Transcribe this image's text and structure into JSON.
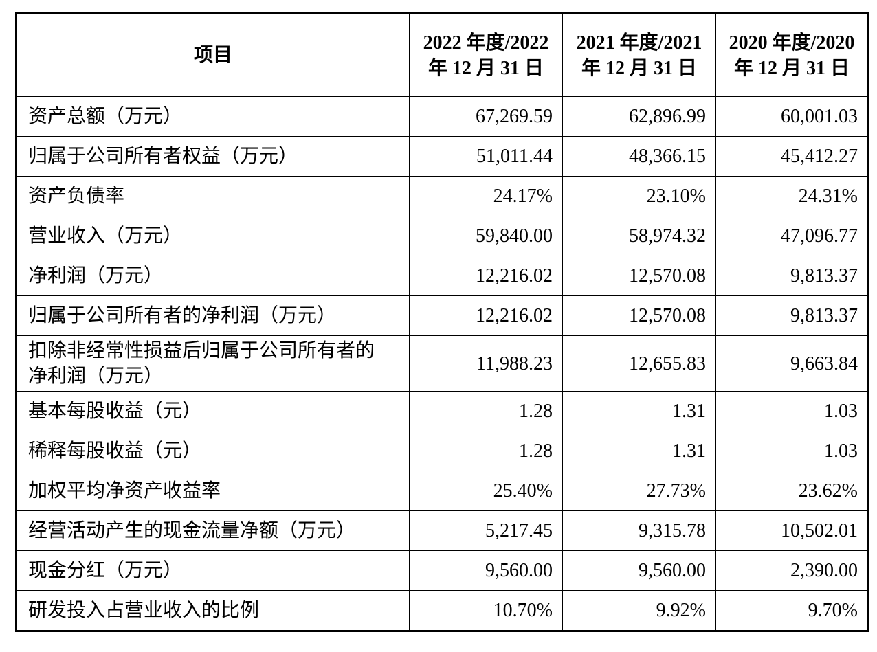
{
  "table": {
    "header": [
      "项目",
      "2022 年度/2022 年 12 月 31 日",
      "2021 年度/2021 年 12 月 31 日",
      "2020 年度/2020 年 12 月 31 日"
    ],
    "rows": [
      [
        "资产总额（万元）",
        "67,269.59",
        "62,896.99",
        "60,001.03"
      ],
      [
        "归属于公司所有者权益（万元）",
        "51,011.44",
        "48,366.15",
        "45,412.27"
      ],
      [
        "资产负债率",
        "24.17%",
        "23.10%",
        "24.31%"
      ],
      [
        "营业收入（万元）",
        "59,840.00",
        "58,974.32",
        "47,096.77"
      ],
      [
        "净利润（万元）",
        "12,216.02",
        "12,570.08",
        "9,813.37"
      ],
      [
        "归属于公司所有者的净利润（万元）",
        "12,216.02",
        "12,570.08",
        "9,813.37"
      ],
      [
        "扣除非经常性损益后归属于公司所有者的净利润（万元）",
        "11,988.23",
        "12,655.83",
        "9,663.84"
      ],
      [
        "基本每股收益（元）",
        "1.28",
        "1.31",
        "1.03"
      ],
      [
        "稀释每股收益（元）",
        "1.28",
        "1.31",
        "1.03"
      ],
      [
        "加权平均净资产收益率",
        "25.40%",
        "27.73%",
        "23.62%"
      ],
      [
        "经营活动产生的现金流量净额（万元）",
        "5,217.45",
        "9,315.78",
        "10,502.01"
      ],
      [
        "现金分红（万元）",
        "9,560.00",
        "9,560.00",
        "2,390.00"
      ],
      [
        "研发投入占营业收入的比例",
        "10.70%",
        "9.92%",
        "9.70%"
      ]
    ]
  }
}
